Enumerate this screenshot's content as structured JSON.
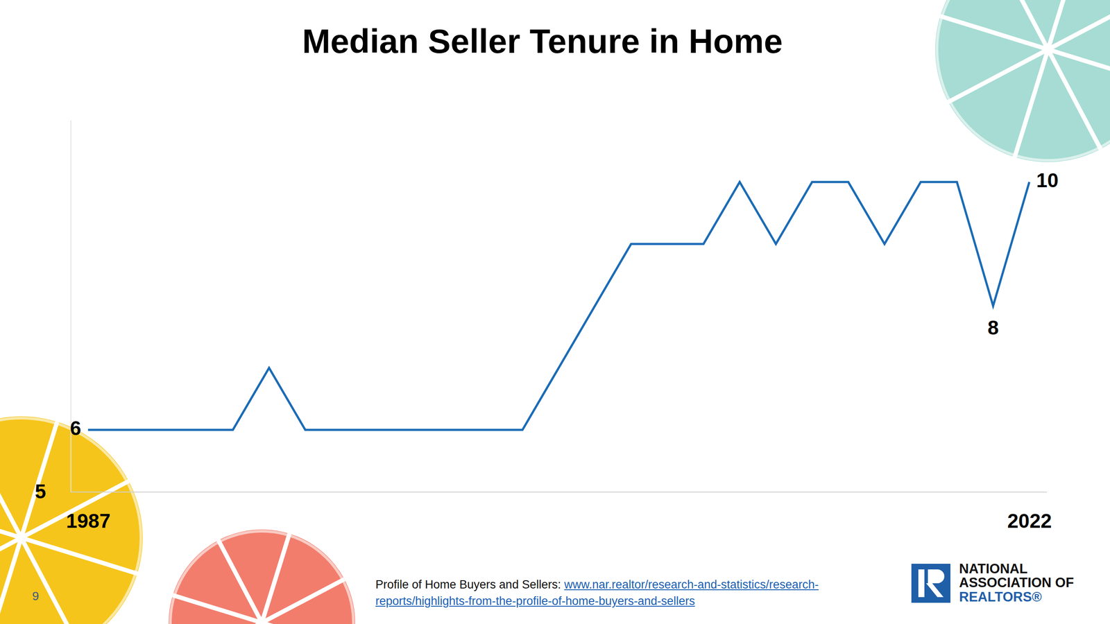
{
  "chart_data": {
    "type": "line",
    "title": "Median Seller Tenure in Home",
    "categories": [
      "1987",
      null,
      null,
      null,
      null,
      null,
      null,
      null,
      null,
      null,
      null,
      null,
      null,
      null,
      null,
      null,
      null,
      null,
      null,
      null,
      null,
      null,
      null,
      null,
      null,
      null,
      "2022"
    ],
    "values": [
      6,
      6,
      6,
      6,
      6,
      7,
      6,
      6,
      6,
      6,
      6,
      6,
      6,
      7,
      8,
      9,
      9,
      9,
      10,
      9,
      10,
      10,
      9,
      10,
      10,
      8,
      10
    ],
    "value_labels": [
      "6",
      null,
      null,
      null,
      null,
      null,
      null,
      null,
      null,
      null,
      null,
      null,
      null,
      null,
      null,
      null,
      null,
      null,
      null,
      null,
      null,
      null,
      null,
      null,
      null,
      "8",
      "10"
    ],
    "data_labels": true,
    "color": "#1a6bb5",
    "ylim": [
      5,
      11
    ],
    "yticks": [
      5
    ]
  },
  "page": {
    "source_label": "Profile of Home Buyers and Sellers: ",
    "source_url": "www.nar.realtor/research-and-statistics/research-reports/highlights-from-the-profile-of-home-buyers-and-sellers",
    "logo": [
      "NATIONAL",
      "ASSOCIATION OF",
      "REALTORS®"
    ],
    "page_number": "9"
  }
}
